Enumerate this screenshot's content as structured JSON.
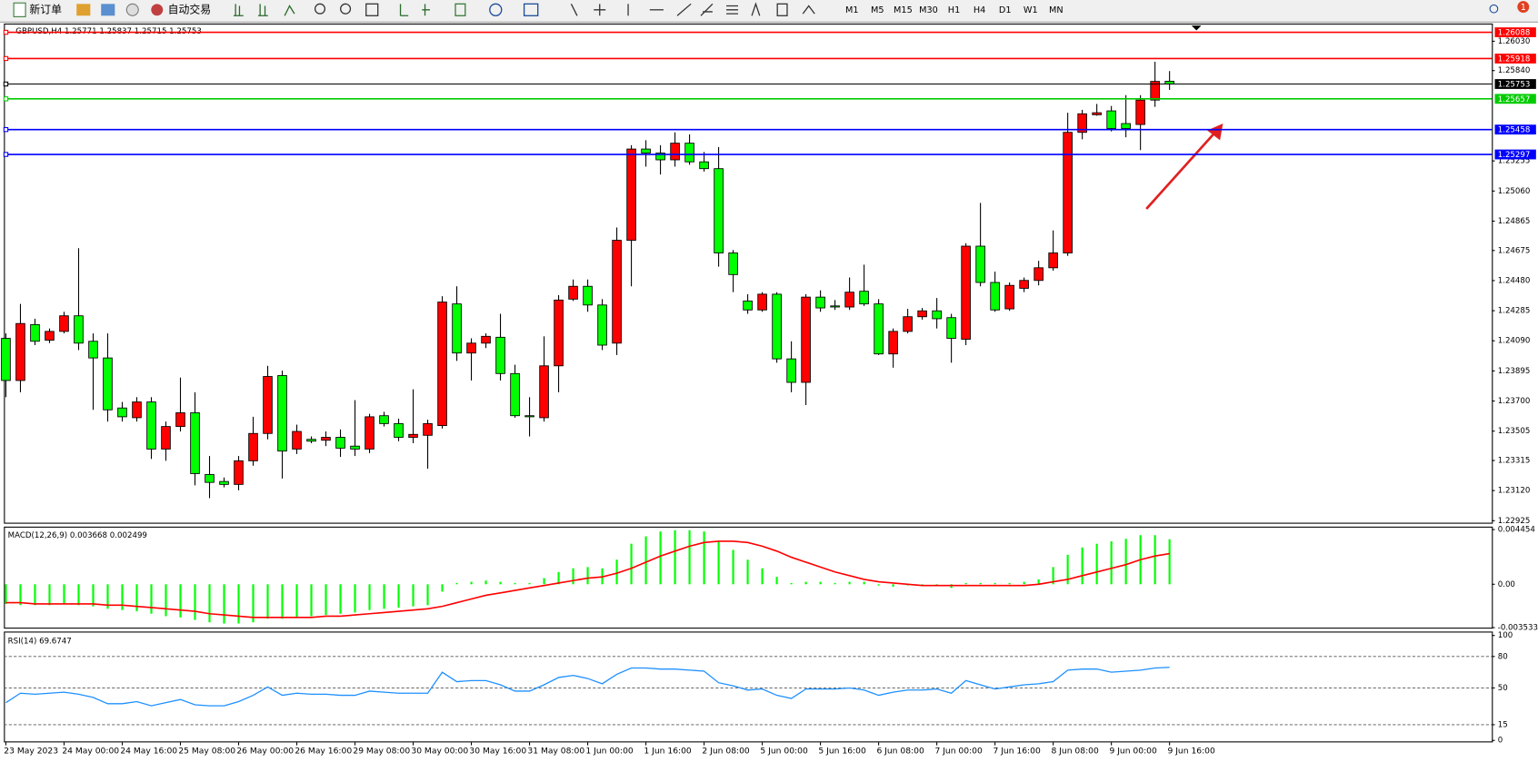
{
  "toolbar": {
    "new_order": "新订单",
    "auto_trading": "自动交易",
    "timeframes": [
      "M1",
      "M5",
      "M15",
      "M30",
      "H1",
      "H4",
      "D1",
      "W1",
      "MN"
    ],
    "badge": "1"
  },
  "chart_data": [
    {
      "type": "candlestick",
      "title": "GBPUSD,H4  1.25771 1.25837 1.25715 1.25753",
      "up_color": "#ff0000",
      "down_color": "#00ff00",
      "categories": [
        "23 May 2023",
        null,
        null,
        null,
        "24 May 00:00",
        null,
        null,
        null,
        "24 May 16:00",
        null,
        null,
        null,
        "25 May 08:00",
        null,
        null,
        null,
        "26 May 00:00",
        null,
        null,
        null,
        "26 May 16:00",
        null,
        null,
        null,
        "29 May 08:00",
        null,
        null,
        null,
        "30 May 00:00",
        null,
        null,
        null,
        "30 May 16:00",
        null,
        null,
        null,
        "31 May 08:00",
        null,
        null,
        null,
        "1 Jun 00:00",
        null,
        null,
        null,
        "1 Jun 16:00",
        null,
        null,
        null,
        "2 Jun 08:00",
        null,
        null,
        null,
        "5 Jun 00:00",
        null,
        null,
        null,
        "5 Jun 16:00",
        null,
        null,
        null,
        "6 Jun 08:00",
        null,
        null,
        null,
        "7 Jun 00:00",
        null,
        null,
        null,
        "7 Jun 16:00",
        null,
        null,
        null,
        "8 Jun 08:00",
        null,
        null,
        null,
        "9 Jun 00:00",
        null,
        null,
        null,
        "9 Jun 16:00"
      ],
      "open": [
        1.24106,
        1.23833,
        1.24195,
        1.24094,
        1.24151,
        1.24252,
        1.24087,
        1.23979,
        1.23655,
        1.23592,
        1.23694,
        1.23389,
        1.23535,
        1.23624,
        1.23224,
        1.23179,
        1.2316,
        1.23313,
        1.2349,
        1.23865,
        1.23389,
        1.23452,
        1.23446,
        1.23465,
        1.23408,
        1.23389,
        1.23605,
        1.23554,
        1.23465,
        1.23478,
        1.23541,
        1.24329,
        1.24011,
        1.24075,
        1.24113,
        1.23878,
        1.23605,
        1.23592,
        1.23928,
        1.2436,
        1.24443,
        1.24322,
        1.24075,
        1.24741,
        1.25332,
        1.25306,
        1.25262,
        1.2537,
        1.25249,
        1.25205,
        1.24659,
        1.24348,
        1.2429,
        1.24392,
        1.23973,
        1.23821,
        1.24373,
        1.24316,
        1.24309,
        1.24411,
        1.24329,
        1.24005,
        1.24151,
        1.24246,
        1.24284,
        1.2424,
        1.241,
        1.24703,
        1.24468,
        1.24297,
        1.2443,
        1.24481,
        1.24563,
        1.24659,
        1.2544,
        1.25554,
        1.25579,
        1.25497,
        1.25491,
        1.25649,
        1.25771
      ],
      "high": [
        1.24138,
        1.24329,
        1.24233,
        1.2417,
        1.24278,
        1.2469,
        1.24138,
        1.24138,
        1.23694,
        1.23725,
        1.23725,
        1.23567,
        1.23852,
        1.23757,
        1.23344,
        1.23205,
        1.23344,
        1.23598,
        1.23928,
        1.23897,
        1.23547,
        1.23471,
        1.23503,
        1.23516,
        1.23706,
        1.23617,
        1.2363,
        1.23586,
        1.23776,
        1.23579,
        1.24379,
        1.24443,
        1.24106,
        1.24138,
        1.24265,
        1.23935,
        1.23725,
        1.24119,
        1.24386,
        1.24487,
        1.24487,
        1.2436,
        1.24824,
        1.25357,
        1.25389,
        1.25357,
        1.2544,
        1.25427,
        1.25313,
        1.25345,
        1.24678,
        1.24392,
        1.24405,
        1.24405,
        1.24087,
        1.24392,
        1.24417,
        1.24354,
        1.245,
        1.24583,
        1.2436,
        1.2417,
        1.24297,
        1.24303,
        1.24367,
        1.24265,
        1.24722,
        1.24983,
        1.24538,
        1.24468,
        1.245,
        1.24608,
        1.24805,
        1.25567,
        1.25586,
        1.25624,
        1.25611,
        1.25681,
        1.25681,
        1.25897,
        1.25837
      ],
      "low": [
        1.23725,
        1.23757,
        1.24062,
        1.24075,
        1.24138,
        1.2403,
        1.23643,
        1.23567,
        1.23567,
        1.23567,
        1.23325,
        1.23313,
        1.23503,
        1.23154,
        1.23071,
        1.23141,
        1.23122,
        1.23281,
        1.23452,
        1.23198,
        1.23357,
        1.23427,
        1.23408,
        1.23338,
        1.23344,
        1.23363,
        1.23535,
        1.2344,
        1.23427,
        1.23262,
        1.23522,
        1.2396,
        1.23833,
        1.24043,
        1.23833,
        1.23592,
        1.23471,
        1.23567,
        1.23757,
        1.24348,
        1.24278,
        1.2403,
        1.23998,
        1.24443,
        1.25218,
        1.25167,
        1.25218,
        1.2523,
        1.25186,
        1.2457,
        1.24405,
        1.24265,
        1.24278,
        1.23948,
        1.23757,
        1.23674,
        1.24278,
        1.2429,
        1.2429,
        1.24316,
        1.23998,
        1.23916,
        1.24138,
        1.24227,
        1.2417,
        1.23948,
        1.24062,
        1.24443,
        1.24278,
        1.24284,
        1.24405,
        1.24449,
        1.24544,
        1.2464,
        1.25395,
        1.25548,
        1.25446,
        1.25408,
        1.25325,
        1.25605,
        1.25715
      ],
      "close": [
        1.23833,
        1.24202,
        1.24087,
        1.24151,
        1.24252,
        1.24075,
        1.23979,
        1.23643,
        1.23598,
        1.23694,
        1.23389,
        1.23535,
        1.23624,
        1.2323,
        1.23173,
        1.2316,
        1.23313,
        1.2349,
        1.23859,
        1.23376,
        1.23503,
        1.2344,
        1.23465,
        1.23395,
        1.23389,
        1.23598,
        1.23554,
        1.23465,
        1.23484,
        1.23554,
        1.24341,
        1.24011,
        1.24075,
        1.24119,
        1.23878,
        1.23605,
        1.23598,
        1.23928,
        1.24354,
        1.24443,
        1.24322,
        1.24062,
        1.24741,
        1.25332,
        1.25306,
        1.25262,
        1.2537,
        1.25249,
        1.25205,
        1.24659,
        1.24519,
        1.2429,
        1.24392,
        1.23973,
        1.23821,
        1.24373,
        1.24303,
        1.24309,
        1.24405,
        1.24329,
        1.24005,
        1.24151,
        1.24246,
        1.24284,
        1.24233,
        1.24106,
        1.24703,
        1.24468,
        1.2429,
        1.24449,
        1.24481,
        1.24563,
        1.24659,
        1.2544,
        1.2556,
        1.25567,
        1.25465,
        1.25465,
        1.25649,
        1.2577,
        1.25753
      ],
      "ylim": [
        1.22912,
        1.26132
      ],
      "yticks": [
        {
          "value": 1.22925,
          "label": "1.22925"
        },
        {
          "value": 1.2312,
          "label": "1.23120"
        },
        {
          "value": 1.23315,
          "label": "1.23315"
        },
        {
          "value": 1.23505,
          "label": "1.23505"
        },
        {
          "value": 1.237,
          "label": "1.23700"
        },
        {
          "value": 1.23895,
          "label": "1.23895"
        },
        {
          "value": 1.2409,
          "label": "1.24090"
        },
        {
          "value": 1.24285,
          "label": "1.24285"
        },
        {
          "value": 1.2448,
          "label": "1.24480"
        },
        {
          "value": 1.24675,
          "label": "1.24675"
        },
        {
          "value": 1.24865,
          "label": "1.24865"
        },
        {
          "value": 1.2506,
          "label": "1.25060"
        },
        {
          "value": 1.25255,
          "label": "1.25255"
        },
        {
          "value": 1.2584,
          "label": "1.25840"
        },
        {
          "value": 1.2603,
          "label": "1.26030"
        }
      ],
      "levels": [
        {
          "value": 1.26088,
          "color": "#ff0000"
        },
        {
          "value": 1.25918,
          "color": "#ff0000"
        },
        {
          "value": 1.25753,
          "color": "#000000"
        },
        {
          "value": 1.25657,
          "color": "#00cc00"
        },
        {
          "value": 1.25458,
          "color": "#0000ff"
        },
        {
          "value": 1.25297,
          "color": "#0000ff"
        }
      ]
    },
    {
      "type": "macd",
      "title": "MACD(12,26,9) 0.003668 0.002499",
      "ylim": [
        -0.003533,
        0.004454
      ],
      "yticks": [
        0.004454,
        {
          "value": 0,
          "label": "0.00"
        },
        -0.003533
      ],
      "series": [
        {
          "color": "#00ff00",
          "values": [
            -0.0016,
            -0.0017,
            -0.0017,
            -0.0017,
            -0.0016,
            -0.0017,
            -0.0018,
            -0.002,
            -0.0021,
            -0.0022,
            -0.0024,
            -0.0026,
            -0.0027,
            -0.0029,
            -0.0031,
            -0.0032,
            -0.0032,
            -0.0031,
            -0.0028,
            -0.0028,
            -0.0027,
            -0.0026,
            -0.0025,
            -0.0024,
            -0.0023,
            -0.0021,
            -0.002,
            -0.0019,
            -0.0018,
            -0.0017,
            -0.0006,
            0.0001,
            0.0002,
            0.0003,
            0.0002,
            0.0001,
            0.0001,
            0.0005,
            0.001,
            0.0013,
            0.0014,
            0.0013,
            0.002,
            0.0033,
            0.0039,
            0.0043,
            0.0044,
            0.0044,
            0.0043,
            0.0035,
            0.0028,
            0.002,
            0.0013,
            0.0006,
            0.0001,
            0.0002,
            0.0002,
            0.0001,
            0.0002,
            0.0002,
            -0.0001,
            -0.0002,
            -0.0001,
            -0.0001,
            -0.0001,
            -0.0003,
            0.0001,
            0.0001,
            0.0001,
            0.0001,
            0.0002,
            0.0004,
            0.0014,
            0.0024,
            0.003,
            0.0033,
            0.0035,
            0.0037,
            0.004,
            0.004,
            0.003668
          ]
        },
        {
          "color": "#ff0000",
          "values": [
            -0.0015,
            -0.0015,
            -0.0016,
            -0.0016,
            -0.0016,
            -0.0016,
            -0.0016,
            -0.0017,
            -0.0017,
            -0.0018,
            -0.0019,
            -0.002,
            -0.0021,
            -0.0022,
            -0.0024,
            -0.0025,
            -0.0026,
            -0.0027,
            -0.0027,
            -0.0027,
            -0.0027,
            -0.0027,
            -0.0026,
            -0.0026,
            -0.0025,
            -0.0024,
            -0.0023,
            -0.0022,
            -0.0021,
            -0.002,
            -0.0018,
            -0.0015,
            -0.0012,
            -0.0009,
            -0.0007,
            -0.0005,
            -0.0003,
            -0.0001,
            0.0001,
            0.0003,
            0.0005,
            0.0006,
            0.0009,
            0.0013,
            0.0018,
            0.0023,
            0.0027,
            0.0031,
            0.0034,
            0.0035,
            0.0035,
            0.0034,
            0.0031,
            0.0027,
            0.0022,
            0.0018,
            0.0014,
            0.001,
            0.0007,
            0.0004,
            0.0002,
            0.0001,
            0,
            -0.0001,
            -0.0001,
            -0.0001,
            -0.0001,
            -0.0001,
            -0.0001,
            -0.0001,
            -0.0001,
            0,
            0.0002,
            0.0004,
            0.0007,
            0.001,
            0.0013,
            0.0016,
            0.002,
            0.0023,
            0.002499
          ]
        }
      ]
    },
    {
      "type": "line",
      "title": "RSI(14) 69.6747",
      "ylim": [
        0,
        100
      ],
      "yticks": [
        100,
        80,
        50,
        15,
        0
      ],
      "levels": [
        80,
        50,
        15
      ],
      "series": [
        {
          "color": "#1e90ff",
          "values": [
            36,
            45,
            44,
            45,
            46,
            44,
            41,
            35,
            35,
            37,
            33,
            36,
            39,
            34,
            33,
            33,
            37,
            43,
            51,
            43,
            45,
            44,
            44,
            43,
            43,
            47,
            46,
            45,
            45,
            45,
            65,
            56,
            57,
            57,
            53,
            47,
            47,
            53,
            60,
            62,
            59,
            54,
            63,
            69,
            69,
            68,
            68,
            67,
            66,
            55,
            52,
            48,
            49,
            43,
            40,
            49,
            49,
            49,
            50,
            48,
            43,
            46,
            48,
            48,
            49,
            45,
            57,
            53,
            49,
            51,
            53,
            54,
            56,
            67,
            68,
            68,
            65,
            66,
            67,
            69,
            69.6747
          ]
        }
      ]
    }
  ]
}
